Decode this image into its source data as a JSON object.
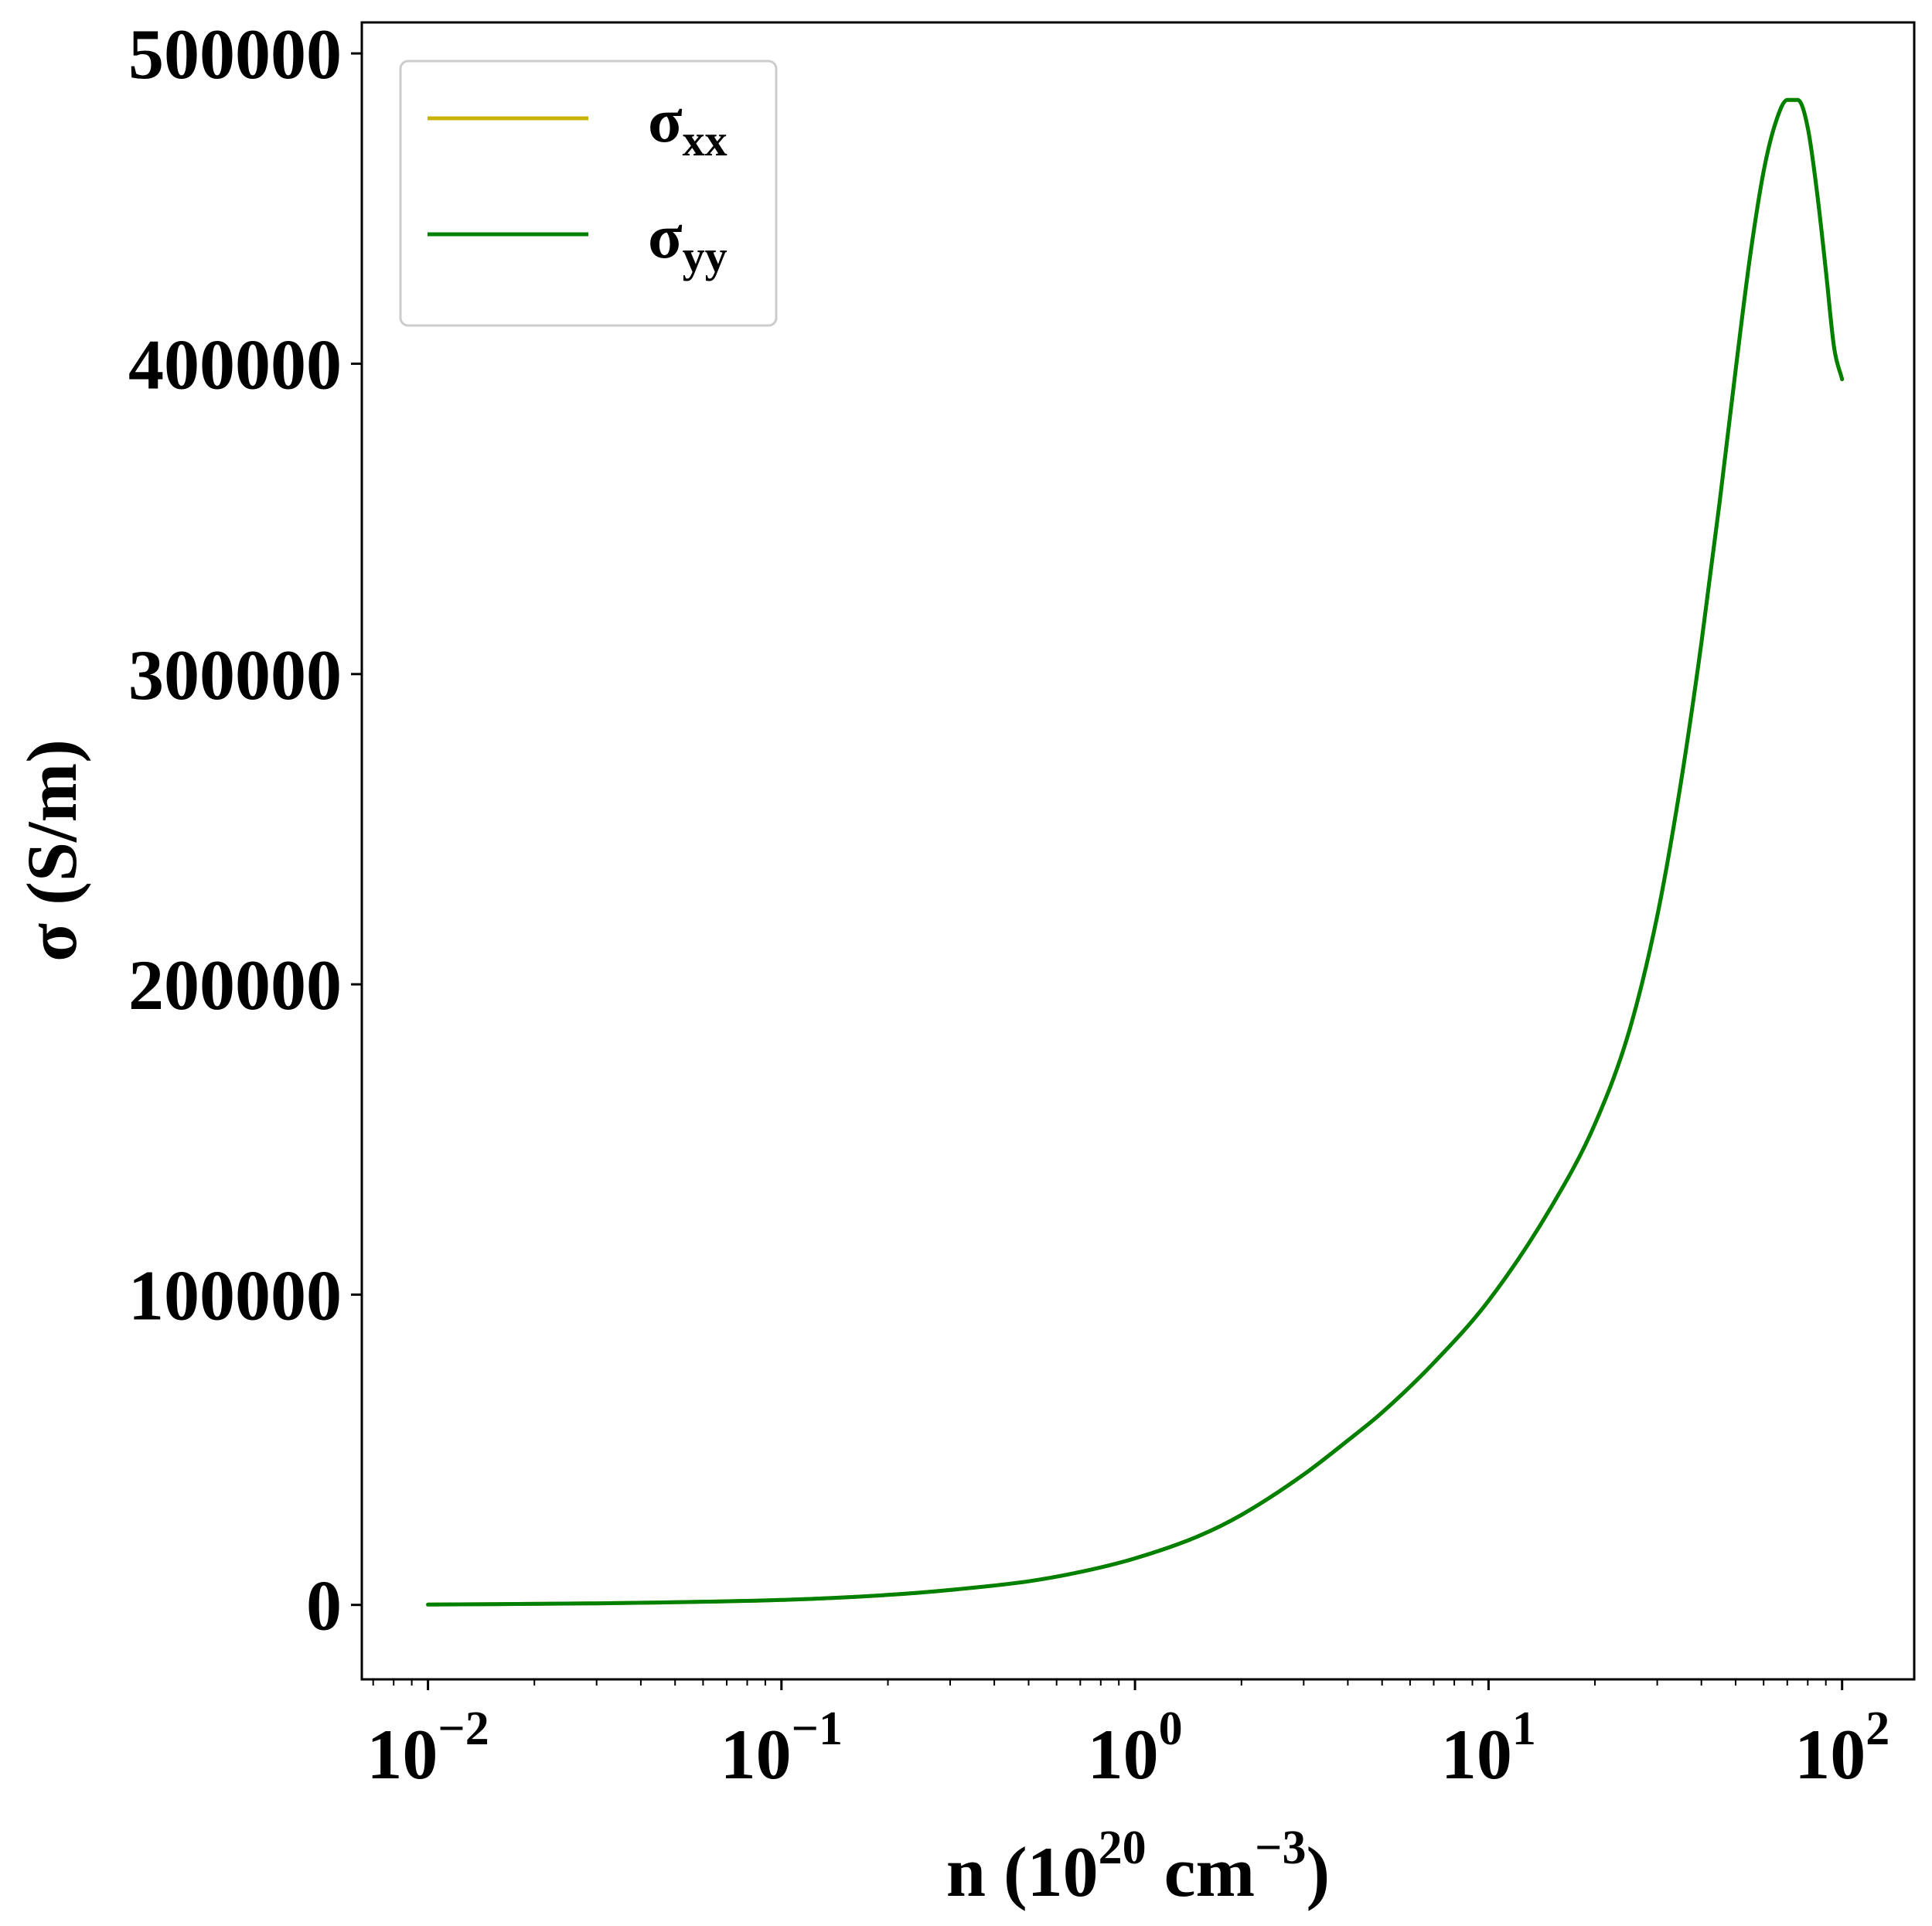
{
  "chart_data": {
    "type": "line",
    "title": "",
    "xlabel": {
      "base": "n (10",
      "exp1": "20",
      "mid": " cm",
      "exp2": "−3",
      "tail": ")"
    },
    "ylabel": "σ (S/m)",
    "x_scale": "log",
    "xlim": [
      0.0065,
      160
    ],
    "ylim": [
      -24000,
      510000
    ],
    "x_ticks": [
      {
        "value": 0.01,
        "base": "10",
        "exp": "−2"
      },
      {
        "value": 0.1,
        "base": "10",
        "exp": "−1"
      },
      {
        "value": 1,
        "base": "10",
        "exp": "0"
      },
      {
        "value": 10,
        "base": "10",
        "exp": "1"
      },
      {
        "value": 100,
        "base": "10",
        "exp": "2"
      }
    ],
    "y_ticks": [
      {
        "value": 0,
        "label": "0"
      },
      {
        "value": 100000,
        "label": "100000"
      },
      {
        "value": 200000,
        "label": "200000"
      },
      {
        "value": 300000,
        "label": "300000"
      },
      {
        "value": 400000,
        "label": "400000"
      },
      {
        "value": 500000,
        "label": "500000"
      }
    ],
    "grid": false,
    "legend_position": "upper-left",
    "x": [
      0.01,
      0.03,
      0.1,
      0.2,
      0.3,
      0.5,
      0.7,
      1,
      1.5,
      2,
      3,
      4,
      5,
      7,
      10,
      15,
      20,
      25,
      30,
      35,
      40,
      45,
      50,
      55,
      60,
      65,
      70,
      75,
      80,
      85,
      90,
      95,
      100
    ],
    "series": [
      {
        "name": "σ",
        "name_sub": "xx",
        "color": "#c8b400",
        "values": [
          100,
          500,
          1600,
          3200,
          4800,
          7600,
          10600,
          15000,
          22000,
          29000,
          42000,
          53000,
          62000,
          78000,
          98000,
          128000,
          155000,
          185000,
          222000,
          265000,
          310000,
          355000,
          398000,
          435000,
          462000,
          478000,
          485000,
          485000,
          476000,
          455000,
          430000,
          405000,
          395000
        ]
      },
      {
        "name": "σ",
        "name_sub": "yy",
        "color": "#008000",
        "values": [
          100,
          500,
          1600,
          3200,
          4800,
          7600,
          10600,
          15000,
          22000,
          29000,
          42000,
          53000,
          62000,
          78000,
          98000,
          128000,
          155000,
          185000,
          222000,
          265000,
          310000,
          355000,
          398000,
          435000,
          462000,
          478000,
          485000,
          485000,
          476000,
          455000,
          430000,
          405000,
          395000
        ]
      }
    ]
  }
}
